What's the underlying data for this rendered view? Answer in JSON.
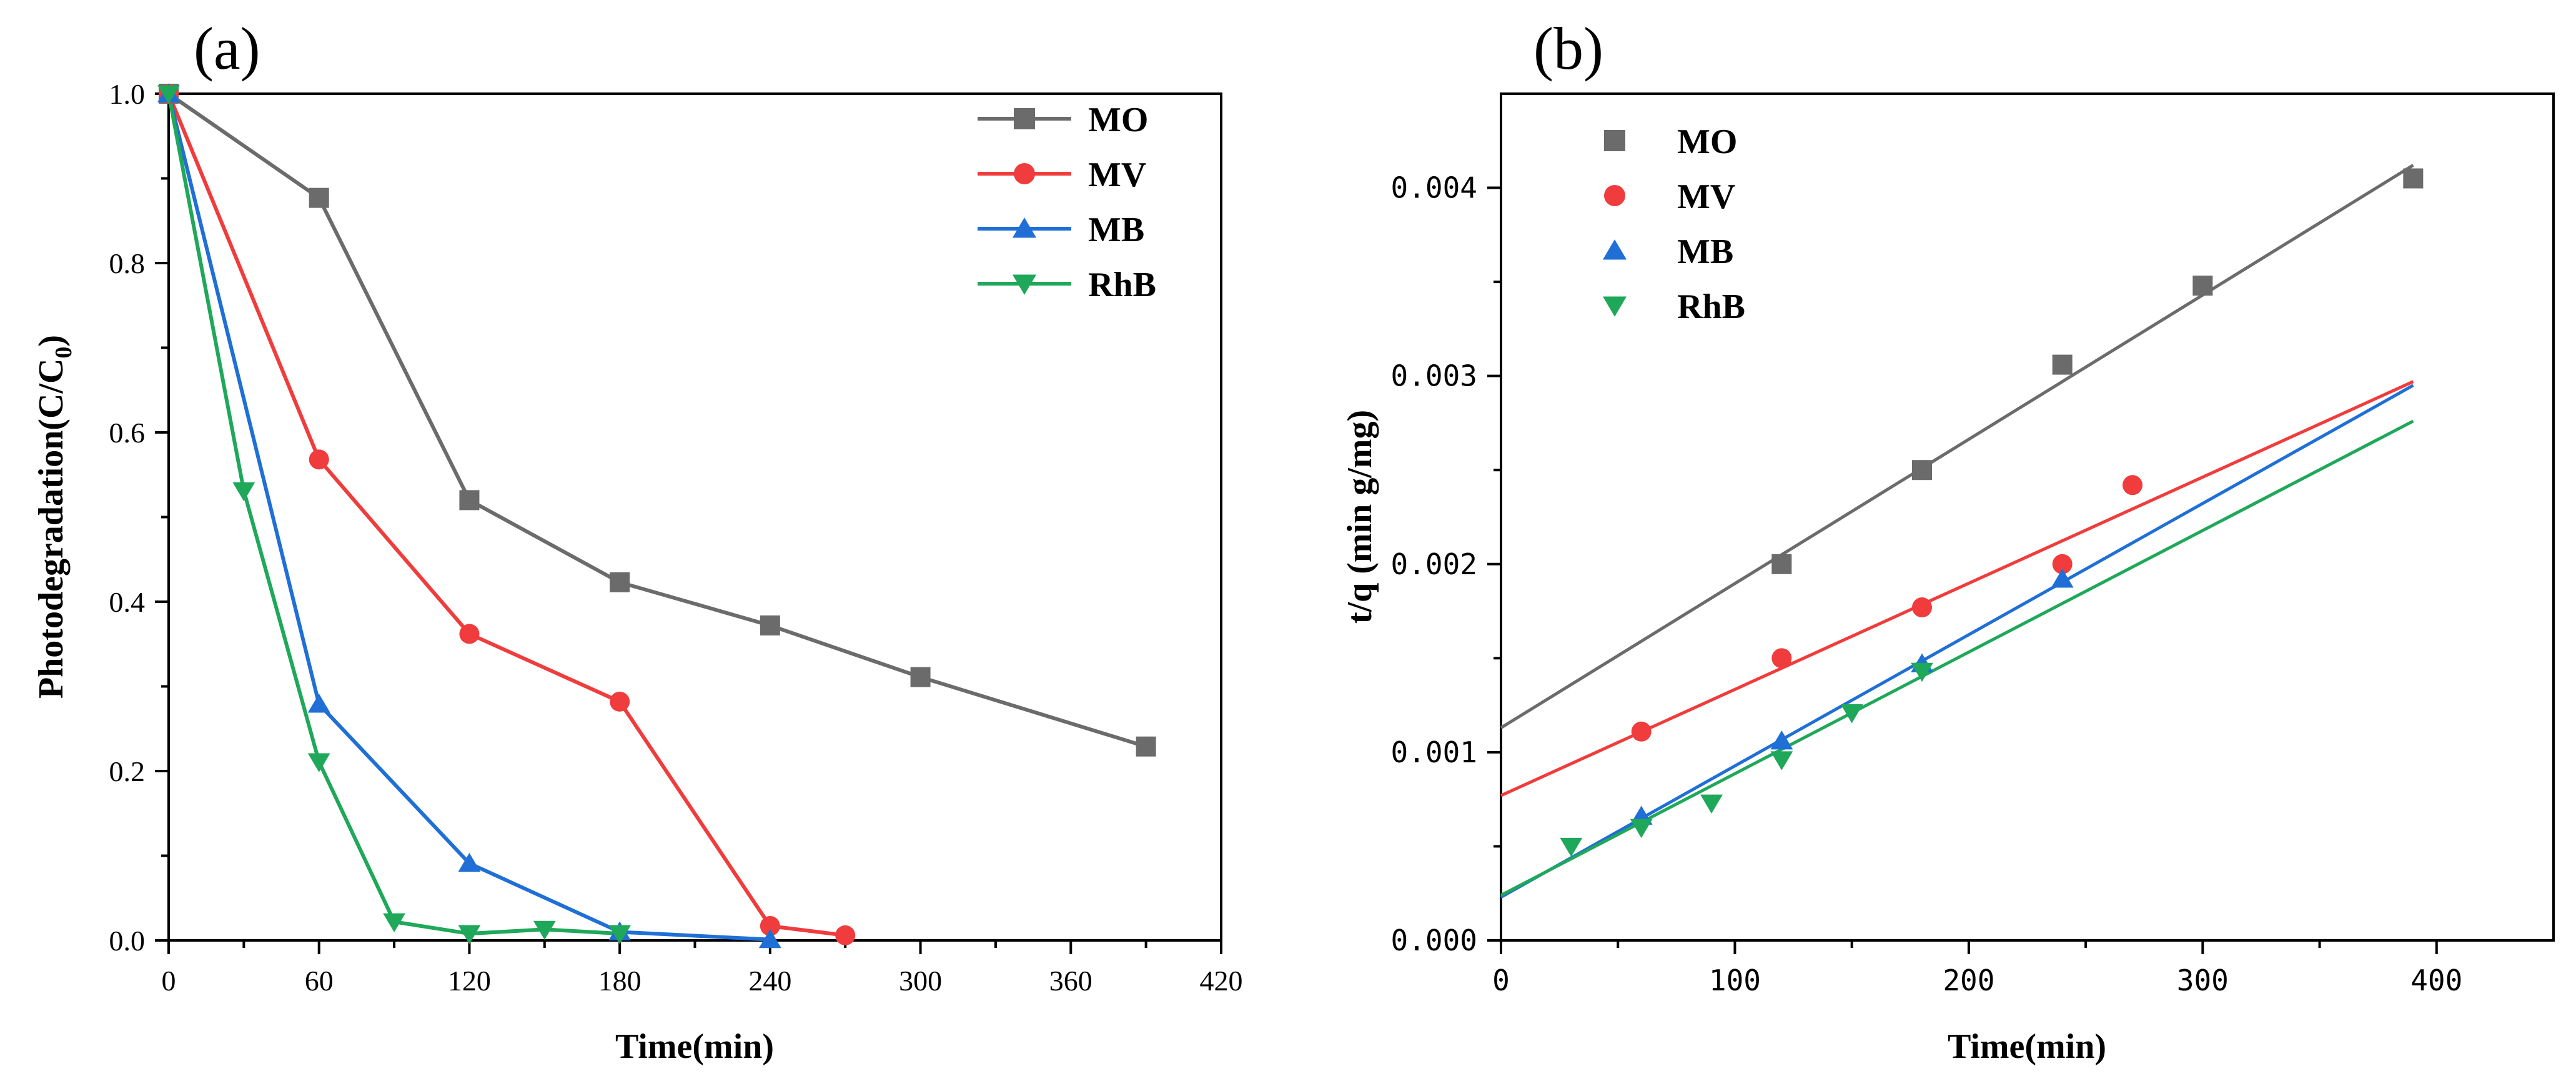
{
  "chart_data": [
    {
      "panel": "(a)",
      "type": "line",
      "title": "",
      "xlabel": "Time(min)",
      "ylabel": "Photodegradation(C/C",
      "ylabel_sub": "0",
      "ylabel_close": ")",
      "xlim": [
        0,
        420
      ],
      "ylim": [
        0,
        1.0
      ],
      "xticks": [
        0,
        60,
        120,
        180,
        240,
        300,
        360,
        420
      ],
      "xtick_labels": [
        "0",
        "60",
        "120",
        "180",
        "240",
        "300",
        "360",
        "420"
      ],
      "yticks": [
        0,
        0.2,
        0.4,
        0.6,
        0.8,
        1.0
      ],
      "ytick_labels": [
        "0.0",
        "0.2",
        "0.4",
        "0.6",
        "0.8",
        "1.0"
      ],
      "legend_position": "top-right",
      "series": [
        {
          "name": "MO",
          "color": "#6b6b6b",
          "marker": "square",
          "x": [
            0,
            60,
            120,
            180,
            240,
            300,
            390
          ],
          "y": [
            1.0,
            0.877,
            0.52,
            0.423,
            0.372,
            0.311,
            0.229
          ]
        },
        {
          "name": "MV",
          "color": "#f03c3c",
          "marker": "circle",
          "x": [
            0,
            60,
            120,
            180,
            240,
            270
          ],
          "y": [
            1.0,
            0.568,
            0.362,
            0.282,
            0.017,
            0.006
          ]
        },
        {
          "name": "MB",
          "color": "#1f6fd6",
          "marker": "triangle-up",
          "x": [
            0,
            60,
            120,
            180,
            240
          ],
          "y": [
            1.0,
            0.279,
            0.091,
            0.01,
            0.001
          ]
        },
        {
          "name": "RhB",
          "color": "#1fa85a",
          "marker": "triangle-down",
          "x": [
            0,
            30,
            60,
            90,
            120,
            150,
            180
          ],
          "y": [
            1.0,
            0.531,
            0.211,
            0.022,
            0.008,
            0.013,
            0.008
          ]
        }
      ]
    },
    {
      "panel": "(b)",
      "type": "scatter",
      "title": "",
      "xlabel": "Time(min)",
      "ylabel": "t/q (min g/mg)",
      "xlim": [
        0,
        450
      ],
      "ylim": [
        0,
        0.0045
      ],
      "xticks": [
        0,
        100,
        200,
        300,
        400
      ],
      "xtick_labels": [
        "0",
        "100",
        "200",
        "300",
        "400"
      ],
      "yticks": [
        0,
        0.001,
        0.002,
        0.003,
        0.004
      ],
      "ytick_labels": [
        "0.000",
        "0.001",
        "0.002",
        "0.003",
        "0.004"
      ],
      "legend_position": "top-left",
      "series": [
        {
          "name": "MO",
          "color": "#6b6b6b",
          "marker": "square",
          "x": [
            120,
            180,
            240,
            300,
            390
          ],
          "y": [
            0.002,
            0.0025,
            0.00306,
            0.00348,
            0.00405
          ],
          "fit": {
            "x": [
              0,
              390
            ],
            "y": [
              0.00113,
              0.00412
            ]
          }
        },
        {
          "name": "MV",
          "color": "#f03c3c",
          "marker": "circle",
          "x": [
            60,
            120,
            180,
            240,
            270
          ],
          "y": [
            0.00111,
            0.0015,
            0.00177,
            0.002,
            0.00242
          ],
          "fit": {
            "x": [
              0,
              390
            ],
            "y": [
              0.00077,
              0.00297
            ]
          }
        },
        {
          "name": "MB",
          "color": "#1f6fd6",
          "marker": "triangle-up",
          "x": [
            60,
            120,
            180,
            240
          ],
          "y": [
            0.00066,
            0.00106,
            0.00147,
            0.00192
          ],
          "fit": {
            "x": [
              0,
              390
            ],
            "y": [
              0.00023,
              0.00295
            ]
          }
        },
        {
          "name": "RhB",
          "color": "#1fa85a",
          "marker": "triangle-down",
          "x": [
            30,
            60,
            90,
            120,
            150,
            180
          ],
          "y": [
            0.0005,
            0.0006,
            0.00073,
            0.00096,
            0.00121,
            0.00143
          ],
          "fit": {
            "x": [
              0,
              390
            ],
            "y": [
              0.00024,
              0.00276
            ]
          }
        }
      ]
    }
  ]
}
